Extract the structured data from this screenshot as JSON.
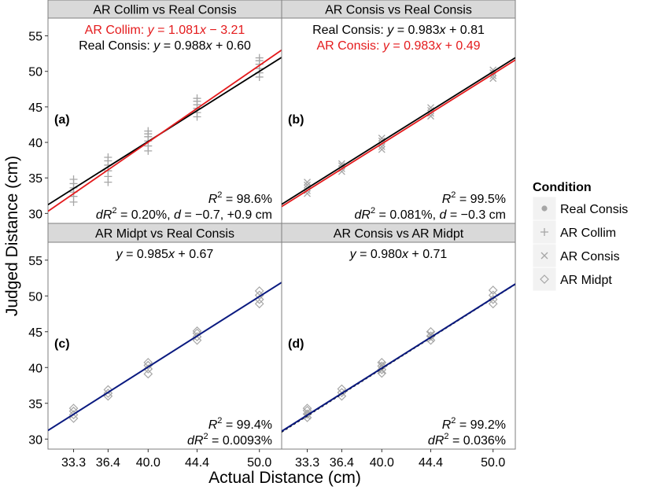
{
  "figure": {
    "ylabel": "Judged Distance (cm)",
    "xlabel": "Actual Distance (cm)",
    "x_ticks": [
      33.3,
      36.4,
      40.0,
      44.4,
      50.0
    ],
    "x_tick_labels": [
      "33.3",
      "36.4",
      "40.0",
      "44.4",
      "50.0"
    ],
    "y_ticks": [
      30,
      35,
      40,
      45,
      50,
      55
    ],
    "y_tick_labels": [
      "30",
      "35",
      "40",
      "45",
      "50",
      "55"
    ],
    "xlim": [
      31.0,
      52.0
    ],
    "ylim": [
      28.6,
      57.5
    ]
  },
  "legend": {
    "title": "Condition",
    "items": [
      {
        "label": "Real Consis",
        "marker": "dot"
      },
      {
        "label": "AR Collim",
        "marker": "plus"
      },
      {
        "label": "AR Consis",
        "marker": "cross"
      },
      {
        "label": "AR Midpt",
        "marker": "diamond"
      }
    ]
  },
  "colors": {
    "strip_bg": "#d9d9d9",
    "panel_border": "#7f7f7f",
    "point": "#a6a6a6",
    "real_line": "#000000",
    "ar_line_red": "#e41a1c",
    "ar_line_blue": "#0a1a80"
  },
  "chart_data": [
    {
      "type": "scatter",
      "strip": "AR Collim vs Real Consis",
      "tag": "(a)",
      "eq_lines": [
        {
          "prefix": "AR Collim: ",
          "var_y": "y",
          "mid": " = 1.081",
          "var_x": "x",
          "tail": " − 3.21",
          "color": "#e41a1c"
        },
        {
          "prefix": "Real Consis: ",
          "var_y": "y",
          "mid": " = 0.988",
          "var_x": "x",
          "tail": " + 0.60",
          "color": "#000000"
        }
      ],
      "r2": {
        "pre": "R",
        "sup": "2",
        "post": " = 98.6%"
      },
      "dr2": {
        "d": "d",
        "pre": "R",
        "sup": "2",
        "post": " = 0.20%, ",
        "d2": "d",
        "post2": " = −0.7, +0.9 cm"
      },
      "lines": [
        {
          "condition": "Real Consis",
          "slope": 0.988,
          "intercept": 0.6,
          "color": "#000000",
          "dash": "3,3",
          "width": 1.2
        },
        {
          "condition": "Real Consis",
          "slope": 0.988,
          "intercept": 0.6,
          "color": "#000000",
          "dash": "",
          "width": 1.8
        },
        {
          "condition": "AR Collim",
          "slope": 1.081,
          "intercept": -3.21,
          "color": "#e41a1c",
          "dash": "",
          "width": 1.8
        }
      ],
      "points": [
        {
          "condition": "AR Collim",
          "x": 33.3,
          "y": [
            31.6,
            32.4,
            33.0,
            33.6,
            34.2,
            34.8
          ]
        },
        {
          "condition": "AR Collim",
          "x": 36.4,
          "y": [
            34.4,
            35.2,
            36.0,
            36.8,
            37.4,
            37.9
          ]
        },
        {
          "condition": "AR Collim",
          "x": 40.0,
          "y": [
            38.8,
            39.5,
            40.2,
            40.8,
            41.2,
            41.6
          ]
        },
        {
          "condition": "AR Collim",
          "x": 44.4,
          "y": [
            43.6,
            44.2,
            44.8,
            45.3,
            45.8,
            46.2
          ]
        },
        {
          "condition": "AR Collim",
          "x": 50.0,
          "y": [
            49.2,
            49.8,
            50.4,
            51.0,
            51.5,
            51.9
          ]
        }
      ]
    },
    {
      "type": "scatter",
      "strip": "AR Consis vs Real Consis",
      "tag": "(b)",
      "eq_lines": [
        {
          "prefix": "Real Consis: ",
          "var_y": "y",
          "mid": " = 0.983",
          "var_x": "x",
          "tail": " + 0.81",
          "color": "#000000"
        },
        {
          "prefix": "AR Consis: ",
          "var_y": "y",
          "mid": " = 0.983",
          "var_x": "x",
          "tail": " + 0.49",
          "color": "#e41a1c"
        }
      ],
      "r2": {
        "pre": "R",
        "sup": "2",
        "post": " = 99.5%"
      },
      "dr2": {
        "d": "d",
        "pre": "R",
        "sup": "2",
        "post": " = 0.081%, ",
        "d2": "d",
        "post2": " = −0.3 cm"
      },
      "lines": [
        {
          "condition": "Real Consis",
          "slope": 0.983,
          "intercept": 0.81,
          "color": "#000000",
          "dash": "3,3",
          "width": 1.2
        },
        {
          "condition": "Real Consis",
          "slope": 0.983,
          "intercept": 0.81,
          "color": "#000000",
          "dash": "",
          "width": 1.8
        },
        {
          "condition": "AR Consis",
          "slope": 0.983,
          "intercept": 0.49,
          "color": "#e41a1c",
          "dash": "",
          "width": 1.8
        }
      ],
      "points": [
        {
          "condition": "AR Consis",
          "x": 33.3,
          "y": [
            32.8,
            33.2,
            33.6,
            34.0,
            34.4
          ]
        },
        {
          "condition": "AR Consis",
          "x": 36.4,
          "y": [
            35.9,
            36.3,
            36.7,
            37.0
          ]
        },
        {
          "condition": "AR Consis",
          "x": 40.0,
          "y": [
            39.0,
            39.4,
            39.8,
            40.2,
            40.6
          ]
        },
        {
          "condition": "AR Consis",
          "x": 44.4,
          "y": [
            43.7,
            44.1,
            44.5,
            44.9
          ]
        },
        {
          "condition": "AR Consis",
          "x": 50.0,
          "y": [
            49.0,
            49.4,
            49.8,
            50.2
          ]
        }
      ]
    },
    {
      "type": "scatter",
      "strip": "AR Midpt vs Real Consis",
      "tag": "(c)",
      "eq_lines": [
        {
          "prefix": "",
          "var_y": "y",
          "mid": " = 0.985",
          "var_x": "x",
          "tail": " + 0.67",
          "color": "#000000"
        }
      ],
      "r2": {
        "pre": "R",
        "sup": "2",
        "post": " = 99.4%"
      },
      "dr2": {
        "d": "d",
        "pre": "R",
        "sup": "2",
        "post": " = 0.0093%",
        "d2": "",
        "post2": ""
      },
      "lines": [
        {
          "condition": "Real Consis",
          "slope": 0.985,
          "intercept": 0.67,
          "color": "#000000",
          "dash": "3,3",
          "width": 1.2
        },
        {
          "condition": "AR Midpt",
          "slope": 0.985,
          "intercept": 0.67,
          "color": "#0a1a80",
          "dash": "",
          "width": 2.0
        }
      ],
      "points": [
        {
          "condition": "AR Midpt",
          "x": 33.3,
          "y": [
            32.9,
            33.4,
            33.9,
            34.3
          ]
        },
        {
          "condition": "AR Midpt",
          "x": 36.4,
          "y": [
            36.0,
            36.4,
            36.9
          ]
        },
        {
          "condition": "AR Midpt",
          "x": 40.0,
          "y": [
            39.1,
            39.8,
            40.3,
            40.7
          ]
        },
        {
          "condition": "AR Midpt",
          "x": 44.4,
          "y": [
            43.8,
            44.3,
            44.8,
            45.1
          ]
        },
        {
          "condition": "AR Midpt",
          "x": 50.0,
          "y": [
            48.9,
            49.5,
            50.1,
            50.7
          ]
        }
      ]
    },
    {
      "type": "scatter",
      "strip": "AR Consis vs AR Midpt",
      "tag": "(d)",
      "eq_lines": [
        {
          "prefix": "",
          "var_y": "y",
          "mid": " = 0.980",
          "var_x": "x",
          "tail": " + 0.71",
          "color": "#000000"
        }
      ],
      "r2": {
        "pre": "R",
        "sup": "2",
        "post": " = 99.2%"
      },
      "dr2": {
        "d": "d",
        "pre": "R",
        "sup": "2",
        "post": " = 0.036%",
        "d2": "",
        "post2": ""
      },
      "lines": [
        {
          "condition": "AR Consis",
          "slope": 0.983,
          "intercept": 0.49,
          "color": "#000000",
          "dash": "3,3",
          "width": 1.2
        },
        {
          "condition": "AR Consis",
          "slope": 0.98,
          "intercept": 0.71,
          "color": "#000000",
          "dash": "",
          "width": 1.6
        },
        {
          "condition": "AR Midpt",
          "slope": 0.98,
          "intercept": 0.71,
          "color": "#0a1a80",
          "dash": "",
          "width": 2.0
        }
      ],
      "points": [
        {
          "condition": "AR Midpt",
          "x": 33.3,
          "y": [
            33.0,
            33.5,
            34.0,
            34.3
          ]
        },
        {
          "condition": "AR Midpt",
          "x": 36.4,
          "y": [
            36.0,
            36.5,
            37.0
          ]
        },
        {
          "condition": "AR Midpt",
          "x": 40.0,
          "y": [
            39.2,
            39.7,
            40.2,
            40.7
          ]
        },
        {
          "condition": "AR Midpt",
          "x": 44.4,
          "y": [
            43.8,
            44.4,
            45.0
          ]
        },
        {
          "condition": "AR Midpt",
          "x": 50.0,
          "y": [
            48.9,
            49.5,
            50.1,
            50.8
          ]
        },
        {
          "condition": "AR Consis",
          "x": 33.3,
          "y": [
            33.2,
            33.8
          ]
        },
        {
          "condition": "AR Consis",
          "x": 40.0,
          "y": [
            39.6,
            40.4
          ]
        },
        {
          "condition": "AR Consis",
          "x": 44.4,
          "y": [
            44.0,
            44.6
          ]
        }
      ]
    }
  ]
}
